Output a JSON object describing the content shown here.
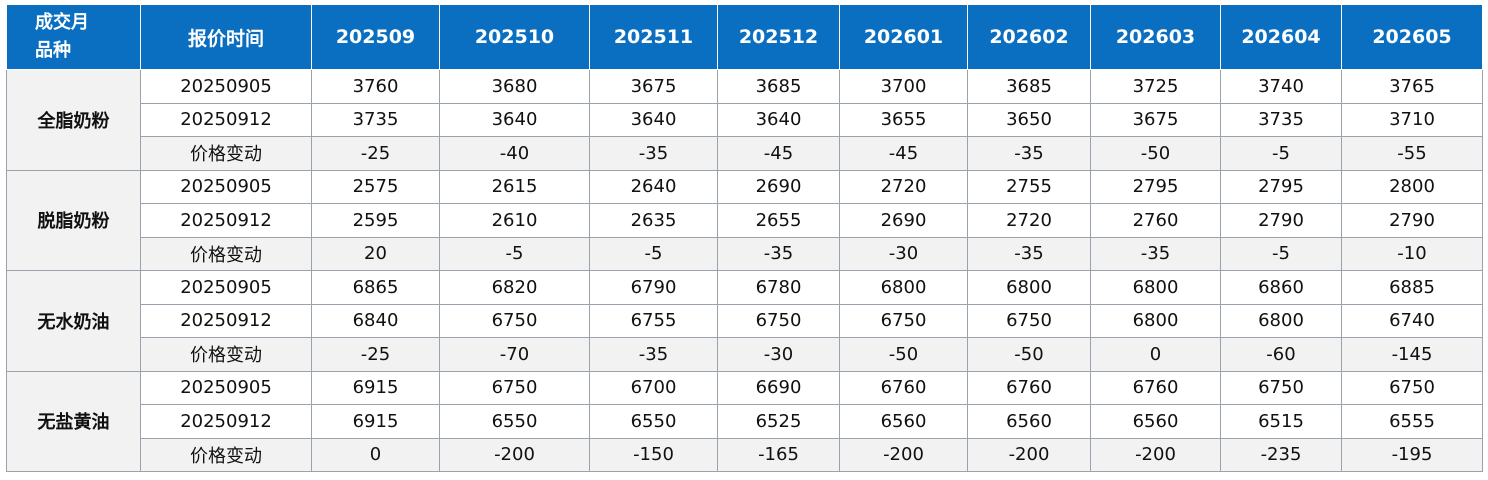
{
  "header": {
    "corner_line1": "成交月",
    "corner_line2": "品种",
    "time_label": "报价时间",
    "months": [
      "202509",
      "202510",
      "202511",
      "202512",
      "202601",
      "202602",
      "202603",
      "202604",
      "202605"
    ]
  },
  "groups": [
    {
      "product": "全脂奶粉",
      "rows": [
        {
          "label": "20250905",
          "values": [
            "3760",
            "3680",
            "3675",
            "3685",
            "3700",
            "3685",
            "3725",
            "3740",
            "3765"
          ]
        },
        {
          "label": "20250912",
          "values": [
            "3735",
            "3640",
            "3640",
            "3640",
            "3655",
            "3650",
            "3675",
            "3735",
            "3710"
          ]
        },
        {
          "label": "价格变动",
          "values": [
            "-25",
            "-40",
            "-35",
            "-45",
            "-45",
            "-35",
            "-50",
            "-5",
            "-55"
          ]
        }
      ]
    },
    {
      "product": "脱脂奶粉",
      "rows": [
        {
          "label": "20250905",
          "values": [
            "2575",
            "2615",
            "2640",
            "2690",
            "2720",
            "2755",
            "2795",
            "2795",
            "2800"
          ]
        },
        {
          "label": "20250912",
          "values": [
            "2595",
            "2610",
            "2635",
            "2655",
            "2690",
            "2720",
            "2760",
            "2790",
            "2790"
          ]
        },
        {
          "label": "价格变动",
          "values": [
            "20",
            "-5",
            "-5",
            "-35",
            "-30",
            "-35",
            "-35",
            "-5",
            "-10"
          ]
        }
      ]
    },
    {
      "product": "无水奶油",
      "rows": [
        {
          "label": "20250905",
          "values": [
            "6865",
            "6820",
            "6790",
            "6780",
            "6800",
            "6800",
            "6800",
            "6860",
            "6885"
          ]
        },
        {
          "label": "20250912",
          "values": [
            "6840",
            "6750",
            "6755",
            "6750",
            "6750",
            "6750",
            "6800",
            "6800",
            "6740"
          ]
        },
        {
          "label": "价格变动",
          "values": [
            "-25",
            "-70",
            "-35",
            "-30",
            "-50",
            "-50",
            "0",
            "-60",
            "-145"
          ]
        }
      ]
    },
    {
      "product": "无盐黄油",
      "rows": [
        {
          "label": "20250905",
          "values": [
            "6915",
            "6750",
            "6700",
            "6690",
            "6760",
            "6760",
            "6760",
            "6750",
            "6750"
          ]
        },
        {
          "label": "20250912",
          "values": [
            "6915",
            "6550",
            "6550",
            "6525",
            "6560",
            "6560",
            "6560",
            "6515",
            "6555"
          ]
        },
        {
          "label": "价格变动",
          "values": [
            "0",
            "-200",
            "-150",
            "-165",
            "-200",
            "-200",
            "-200",
            "-235",
            "-195"
          ]
        }
      ]
    }
  ],
  "colors": {
    "header_bg": "#0a6fc0",
    "negative": "#19a34a",
    "positive": "#c00000"
  }
}
